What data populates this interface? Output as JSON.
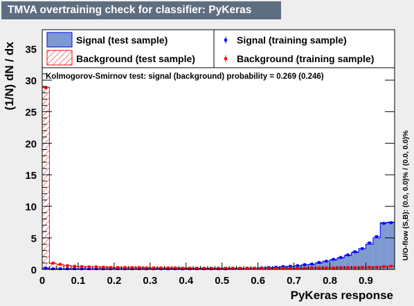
{
  "chart_data": {
    "type": "histogram",
    "title": "TMVA overtraining check for classifier: PyKeras",
    "xlabel": "PyKeras response",
    "ylabel": "(1/N) dN / dx",
    "xlim": [
      0,
      0.98
    ],
    "ylim": [
      0,
      38
    ],
    "xticks": [
      "0",
      "0.1",
      "0.2",
      "0.3",
      "0.4",
      "0.5",
      "0.6",
      "0.7",
      "0.8",
      "0.9"
    ],
    "yticks": [
      "0",
      "5",
      "10",
      "15",
      "20",
      "25",
      "30",
      "35"
    ],
    "bin_width": 0.02,
    "bin_edges_start": 0,
    "series": [
      {
        "name": "Signal (test sample)",
        "style": "filled-histogram",
        "color": "#7d99d1",
        "values": [
          0.2,
          0.1,
          0.1,
          0.1,
          0.1,
          0.1,
          0.1,
          0.1,
          0.1,
          0.1,
          0.1,
          0.1,
          0.1,
          0.1,
          0.1,
          0.1,
          0.1,
          0.1,
          0.1,
          0.1,
          0.1,
          0.1,
          0.1,
          0.1,
          0.1,
          0.1,
          0.15,
          0.15,
          0.2,
          0.2,
          0.25,
          0.3,
          0.3,
          0.4,
          0.5,
          0.6,
          0.7,
          0.8,
          1.0,
          1.3,
          1.5,
          1.8,
          2.2,
          2.7,
          3.3,
          4.0,
          5.0,
          7.4,
          7.5
        ]
      },
      {
        "name": "Background (test sample)",
        "style": "hatched-histogram",
        "color": "#ff0000",
        "values": [
          28.9,
          0.9,
          0.8,
          0.6,
          0.5,
          0.45,
          0.4,
          0.4,
          0.35,
          0.35,
          0.3,
          0.3,
          0.3,
          0.3,
          0.3,
          0.25,
          0.25,
          0.25,
          0.25,
          0.25,
          0.25,
          0.2,
          0.2,
          0.2,
          0.2,
          0.2,
          0.2,
          0.2,
          0.2,
          0.2,
          0.2,
          0.2,
          0.2,
          0.2,
          0.2,
          0.2,
          0.2,
          0.25,
          0.25,
          0.25,
          0.25,
          0.3,
          0.3,
          0.3,
          0.3,
          0.35,
          0.35,
          0.4,
          0.5
        ]
      },
      {
        "name": "Signal (training sample)",
        "style": "markers",
        "color": "#0000ff",
        "values": [
          0.2,
          0.1,
          0.1,
          0.1,
          0.1,
          0.1,
          0.1,
          0.1,
          0.1,
          0.1,
          0.1,
          0.1,
          0.1,
          0.1,
          0.1,
          0.1,
          0.1,
          0.1,
          0.1,
          0.1,
          0.1,
          0.1,
          0.1,
          0.1,
          0.1,
          0.1,
          0.15,
          0.15,
          0.2,
          0.2,
          0.25,
          0.3,
          0.35,
          0.45,
          0.5,
          0.6,
          0.75,
          0.85,
          1.1,
          1.3,
          1.6,
          1.9,
          2.3,
          2.8,
          3.3,
          4.2,
          5.2,
          7.3,
          7.4
        ]
      },
      {
        "name": "Background (training sample)",
        "style": "markers",
        "color": "#ff0000",
        "values": [
          28.8,
          1.0,
          0.8,
          0.6,
          0.5,
          0.45,
          0.4,
          0.4,
          0.35,
          0.3,
          0.3,
          0.3,
          0.3,
          0.3,
          0.25,
          0.25,
          0.25,
          0.25,
          0.25,
          0.2,
          0.2,
          0.2,
          0.2,
          0.2,
          0.2,
          0.2,
          0.2,
          0.2,
          0.2,
          0.2,
          0.2,
          0.2,
          0.2,
          0.2,
          0.2,
          0.2,
          0.2,
          0.25,
          0.25,
          0.25,
          0.25,
          0.3,
          0.3,
          0.3,
          0.35,
          0.35,
          0.35,
          0.45,
          0.5
        ]
      }
    ],
    "legend": {
      "placement": "top",
      "entries": [
        "Signal (test sample)",
        "Signal (training sample)",
        "Background (test sample)",
        "Background (training sample)"
      ]
    },
    "annotation": "Kolmogorov-Smirnov test: signal (background) probability = 0.269 (0.246)",
    "overflow_label": "U/O-flow (S,B): (0.0, 0.0)% / (0.0, 0.0)%",
    "grid": false
  }
}
